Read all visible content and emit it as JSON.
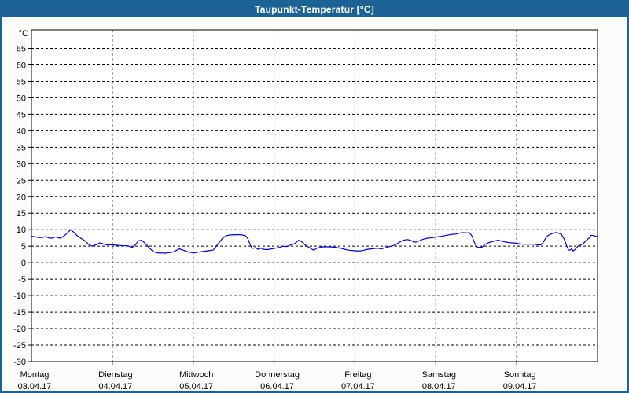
{
  "window": {
    "title": "Taupunkt-Temperatur [°C]",
    "title_bar_color": "#1d6295",
    "background_color": "#fcfdfa"
  },
  "chart_data": {
    "type": "line",
    "title": "Taupunkt-Temperatur [°C]",
    "ylabel": "°C",
    "xlabel": "",
    "ylim": [
      -30,
      70.6
    ],
    "y_tick_step": 5,
    "y_ticks": [
      65,
      60,
      55,
      50,
      45,
      40,
      35,
      30,
      25,
      20,
      15,
      10,
      5,
      0,
      -5,
      -10,
      -15,
      -20,
      -25,
      -30
    ],
    "grid": "dashed",
    "grid_color": "#000000",
    "plot_background": "#ffffff",
    "line_color": "#0000cc",
    "legend_position": "none",
    "x_days": [
      {
        "name": "Montag",
        "date": "03.04.17"
      },
      {
        "name": "Dienstag",
        "date": "04.04.17"
      },
      {
        "name": "Mittwoch",
        "date": "05.04.17"
      },
      {
        "name": "Donnerstag",
        "date": "06.04.17"
      },
      {
        "name": "Freitag",
        "date": "07.04.17"
      },
      {
        "name": "Samstag",
        "date": "08.04.17"
      },
      {
        "name": "Sonntag",
        "date": "09.04.17"
      }
    ],
    "x_range_days": [
      0,
      7
    ],
    "series": [
      {
        "name": "Taupunkt-Temperatur",
        "unit": "°C",
        "points": [
          [
            0.0,
            8.0
          ],
          [
            0.049,
            7.8
          ],
          [
            0.097,
            7.6
          ],
          [
            0.146,
            7.7
          ],
          [
            0.175,
            7.9
          ],
          [
            0.214,
            7.5
          ],
          [
            0.253,
            7.4
          ],
          [
            0.292,
            7.8
          ],
          [
            0.331,
            7.6
          ],
          [
            0.36,
            7.4
          ],
          [
            0.408,
            8.2
          ],
          [
            0.457,
            9.3
          ],
          [
            0.486,
            10.0
          ],
          [
            0.525,
            9.2
          ],
          [
            0.564,
            8.2
          ],
          [
            0.612,
            7.4
          ],
          [
            0.651,
            6.8
          ],
          [
            0.71,
            5.5
          ],
          [
            0.749,
            5.0
          ],
          [
            0.797,
            5.4
          ],
          [
            0.846,
            6.0
          ],
          [
            0.885,
            5.7
          ],
          [
            0.933,
            5.4
          ],
          [
            1.0,
            5.4
          ],
          [
            1.099,
            5.2
          ],
          [
            1.196,
            5.1
          ],
          [
            1.244,
            4.6
          ],
          [
            1.283,
            5.4
          ],
          [
            1.322,
            6.6
          ],
          [
            1.361,
            6.8
          ],
          [
            1.41,
            5.8
          ],
          [
            1.458,
            4.4
          ],
          [
            1.507,
            3.4
          ],
          [
            1.556,
            3.0
          ],
          [
            1.653,
            2.9
          ],
          [
            1.75,
            3.2
          ],
          [
            1.799,
            3.8
          ],
          [
            1.828,
            4.2
          ],
          [
            1.876,
            3.8
          ],
          [
            1.944,
            3.2
          ],
          [
            2.013,
            3.0
          ],
          [
            2.061,
            3.2
          ],
          [
            2.119,
            3.4
          ],
          [
            2.207,
            3.7
          ],
          [
            2.246,
            3.8
          ],
          [
            2.285,
            5.0
          ],
          [
            2.324,
            6.2
          ],
          [
            2.363,
            7.4
          ],
          [
            2.411,
            8.2
          ],
          [
            2.46,
            8.4
          ],
          [
            2.557,
            8.5
          ],
          [
            2.606,
            8.4
          ],
          [
            2.645,
            8.2
          ],
          [
            2.674,
            7.4
          ],
          [
            2.693,
            6.2
          ],
          [
            2.713,
            5.0
          ],
          [
            2.732,
            4.3
          ],
          [
            2.771,
            4.6
          ],
          [
            2.8,
            4.1
          ],
          [
            2.839,
            4.4
          ],
          [
            2.878,
            4.0
          ],
          [
            2.926,
            4.0
          ],
          [
            2.975,
            4.2
          ],
          [
            3.014,
            4.4
          ],
          [
            3.062,
            4.6
          ],
          [
            3.111,
            5.0
          ],
          [
            3.16,
            4.9
          ],
          [
            3.208,
            5.4
          ],
          [
            3.257,
            5.8
          ],
          [
            3.306,
            6.8
          ],
          [
            3.344,
            6.3
          ],
          [
            3.383,
            5.4
          ],
          [
            3.422,
            4.8
          ],
          [
            3.461,
            4.2
          ],
          [
            3.49,
            3.8
          ],
          [
            3.529,
            4.4
          ],
          [
            3.597,
            4.8
          ],
          [
            3.694,
            4.8
          ],
          [
            3.772,
            4.6
          ],
          [
            3.821,
            4.4
          ],
          [
            3.869,
            4.1
          ],
          [
            3.918,
            3.8
          ],
          [
            3.967,
            3.7
          ],
          [
            4.015,
            3.6
          ],
          [
            4.074,
            3.6
          ],
          [
            4.112,
            3.8
          ],
          [
            4.161,
            4.1
          ],
          [
            4.21,
            4.2
          ],
          [
            4.278,
            4.4
          ],
          [
            4.326,
            4.2
          ],
          [
            4.375,
            4.5
          ],
          [
            4.414,
            4.8
          ],
          [
            4.453,
            5.0
          ],
          [
            4.501,
            5.4
          ],
          [
            4.55,
            6.2
          ],
          [
            4.599,
            6.8
          ],
          [
            4.647,
            7.0
          ],
          [
            4.686,
            6.8
          ],
          [
            4.725,
            6.3
          ],
          [
            4.754,
            6.2
          ],
          [
            4.793,
            6.6
          ],
          [
            4.832,
            7.0
          ],
          [
            4.89,
            7.4
          ],
          [
            4.958,
            7.6
          ],
          [
            5.017,
            7.8
          ],
          [
            5.075,
            8.0
          ],
          [
            5.133,
            8.3
          ],
          [
            5.201,
            8.6
          ],
          [
            5.25,
            8.7
          ],
          [
            5.299,
            9.0
          ],
          [
            5.347,
            9.1
          ],
          [
            5.386,
            9.0
          ],
          [
            5.415,
            9.1
          ],
          [
            5.444,
            8.2
          ],
          [
            5.464,
            7.0
          ],
          [
            5.483,
            5.8
          ],
          [
            5.503,
            4.9
          ],
          [
            5.532,
            4.6
          ],
          [
            5.571,
            4.7
          ],
          [
            5.61,
            5.6
          ],
          [
            5.648,
            6.0
          ],
          [
            5.687,
            6.3
          ],
          [
            5.726,
            6.6
          ],
          [
            5.775,
            6.8
          ],
          [
            5.833,
            6.4
          ],
          [
            5.901,
            6.1
          ],
          [
            5.96,
            6.0
          ],
          [
            6.018,
            5.8
          ],
          [
            6.076,
            5.6
          ],
          [
            6.144,
            5.6
          ],
          [
            6.212,
            5.6
          ],
          [
            6.261,
            5.4
          ],
          [
            6.3,
            5.4
          ],
          [
            6.329,
            6.2
          ],
          [
            6.358,
            7.4
          ],
          [
            6.387,
            8.2
          ],
          [
            6.417,
            8.6
          ],
          [
            6.455,
            9.0
          ],
          [
            6.485,
            9.1
          ],
          [
            6.514,
            9.0
          ],
          [
            6.553,
            8.6
          ],
          [
            6.582,
            7.4
          ],
          [
            6.601,
            6.2
          ],
          [
            6.621,
            5.0
          ],
          [
            6.64,
            3.9
          ],
          [
            6.66,
            3.8
          ],
          [
            6.679,
            4.2
          ],
          [
            6.699,
            3.6
          ],
          [
            6.728,
            4.1
          ],
          [
            6.757,
            5.0
          ],
          [
            6.796,
            5.4
          ],
          [
            6.825,
            5.8
          ],
          [
            6.854,
            6.6
          ],
          [
            6.893,
            7.4
          ],
          [
            6.922,
            8.3
          ],
          [
            6.951,
            8.2
          ],
          [
            6.99,
            7.9
          ],
          [
            7.0,
            7.8
          ]
        ]
      }
    ]
  }
}
